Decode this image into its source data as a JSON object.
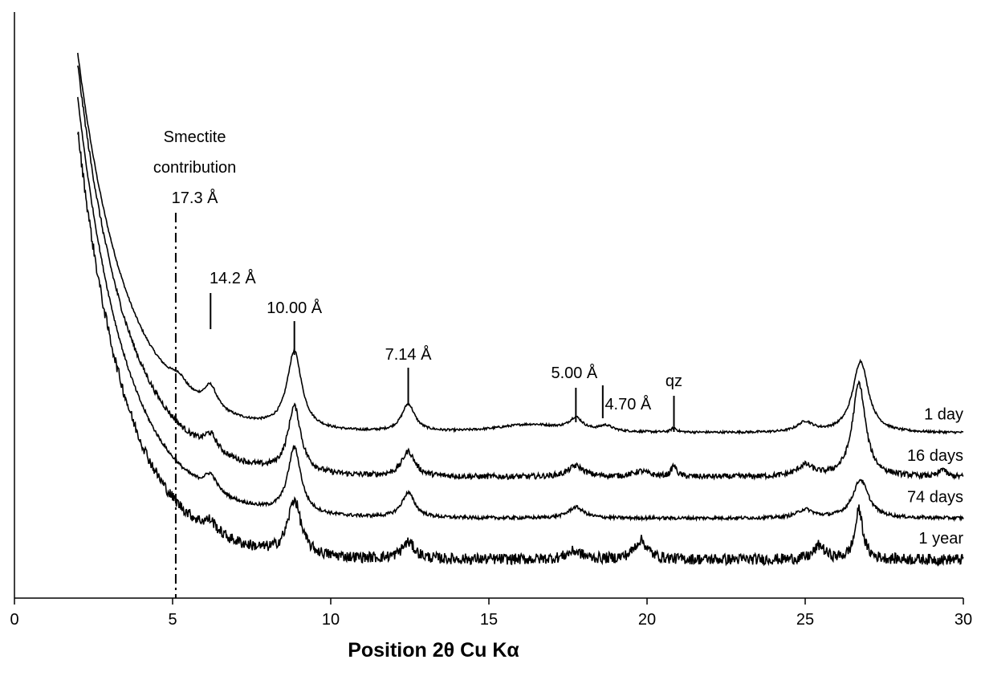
{
  "chart_data": {
    "type": "line",
    "title": "",
    "xlabel": "Position 2θ Cu Kα",
    "ylabel": "",
    "xlim": [
      0,
      30
    ],
    "ylim": [
      0,
      1
    ],
    "xticks": [
      0,
      5,
      10,
      15,
      20,
      25,
      30
    ],
    "grid": false,
    "legend": "none",
    "series": [
      {
        "name": "1 day",
        "baseline": 0.3,
        "onset": 0.99,
        "noise": 0.002,
        "peaks": [
          {
            "x": 5.2,
            "h": 0.02,
            "w": 0.3
          },
          {
            "x": 6.2,
            "h": 0.04,
            "w": 0.25
          },
          {
            "x": 8.85,
            "h": 0.14,
            "w": 0.28
          },
          {
            "x": 12.45,
            "h": 0.05,
            "w": 0.25
          },
          {
            "x": 16.3,
            "h": 0.015,
            "w": 1.3
          },
          {
            "x": 17.75,
            "h": 0.022,
            "w": 0.25
          },
          {
            "x": 18.7,
            "h": 0.01,
            "w": 0.25
          },
          {
            "x": 20.85,
            "h": 0.008,
            "w": 0.1
          },
          {
            "x": 25.0,
            "h": 0.018,
            "w": 0.3
          },
          {
            "x": 26.75,
            "h": 0.13,
            "w": 0.3
          }
        ]
      },
      {
        "name": "16 days",
        "baseline": 0.22,
        "onset": 0.97,
        "noise": 0.005,
        "peaks": [
          {
            "x": 6.2,
            "h": 0.03,
            "w": 0.25
          },
          {
            "x": 8.85,
            "h": 0.12,
            "w": 0.25
          },
          {
            "x": 12.45,
            "h": 0.045,
            "w": 0.25
          },
          {
            "x": 17.75,
            "h": 0.02,
            "w": 0.3
          },
          {
            "x": 19.8,
            "h": 0.01,
            "w": 0.3
          },
          {
            "x": 20.85,
            "h": 0.02,
            "w": 0.1
          },
          {
            "x": 25.0,
            "h": 0.02,
            "w": 0.3
          },
          {
            "x": 26.7,
            "h": 0.17,
            "w": 0.25
          },
          {
            "x": 29.35,
            "h": 0.015,
            "w": 0.1
          }
        ]
      },
      {
        "name": "74 days",
        "baseline": 0.145,
        "onset": 0.91,
        "noise": 0.003,
        "peaks": [
          {
            "x": 6.2,
            "h": 0.03,
            "w": 0.25
          },
          {
            "x": 8.85,
            "h": 0.12,
            "w": 0.25
          },
          {
            "x": 12.45,
            "h": 0.045,
            "w": 0.25
          },
          {
            "x": 17.75,
            "h": 0.02,
            "w": 0.3
          },
          {
            "x": 25.0,
            "h": 0.015,
            "w": 0.3
          },
          {
            "x": 26.75,
            "h": 0.07,
            "w": 0.3
          }
        ]
      },
      {
        "name": "1 year",
        "baseline": 0.07,
        "onset": 0.85,
        "noise": 0.01,
        "peaks": [
          {
            "x": 6.2,
            "h": 0.02,
            "w": 0.25
          },
          {
            "x": 8.85,
            "h": 0.1,
            "w": 0.25
          },
          {
            "x": 12.45,
            "h": 0.03,
            "w": 0.25
          },
          {
            "x": 17.7,
            "h": 0.015,
            "w": 0.3
          },
          {
            "x": 19.8,
            "h": 0.035,
            "w": 0.25
          },
          {
            "x": 25.45,
            "h": 0.025,
            "w": 0.2
          },
          {
            "x": 26.7,
            "h": 0.09,
            "w": 0.15
          }
        ]
      }
    ],
    "annotations": [
      {
        "text": "17.3 Å",
        "x": 5.1,
        "marker": "dashdot"
      },
      {
        "text": "14.2 Å",
        "x": 6.2
      },
      {
        "text": "10.00 Å",
        "x": 8.85
      },
      {
        "text": "7.14 Å",
        "x": 12.45
      },
      {
        "text": "5.00 Å",
        "x": 17.75
      },
      {
        "text": "4.70 Å",
        "x": 18.6
      },
      {
        "text": "qz",
        "x": 20.85
      }
    ],
    "smectite_label": [
      "Smectite",
      "contribution"
    ]
  }
}
